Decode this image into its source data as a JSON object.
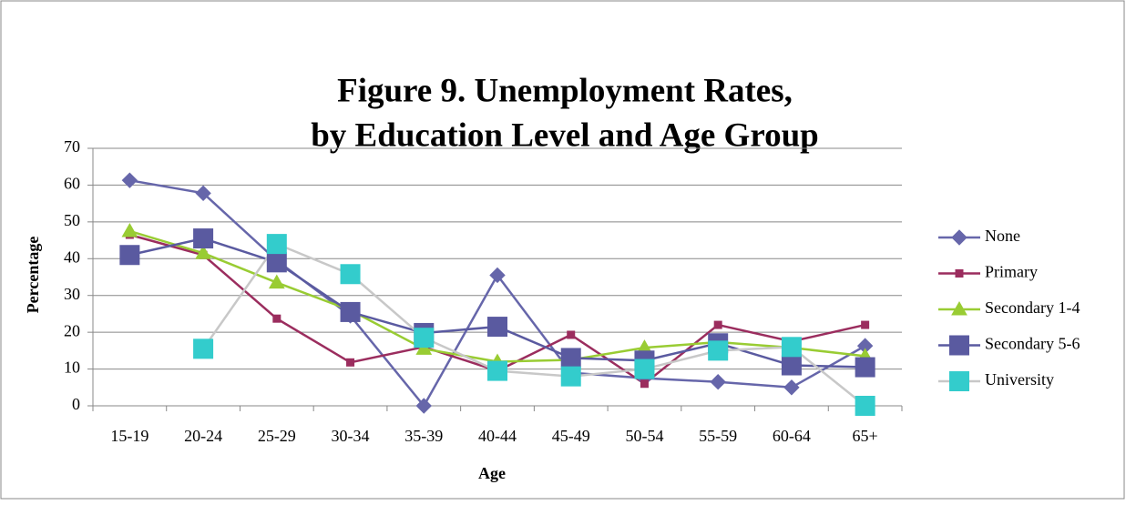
{
  "chart_data": {
    "type": "line",
    "title": [
      "Figure 9. Unemployment Rates,",
      "by Education Level and Age Group"
    ],
    "x_label": "Age",
    "y_label": "Percentage",
    "categories": [
      "15-19",
      "20-24",
      "25-29",
      "30-34",
      "35-39",
      "40-44",
      "45-49",
      "50-54",
      "55-59",
      "60-64",
      "65+"
    ],
    "ylim": [
      0,
      70
    ],
    "yticks": [
      0,
      10,
      20,
      30,
      40,
      50,
      60,
      70
    ],
    "grid": true,
    "legend": "right",
    "series": [
      {
        "name": "None",
        "color": "#6666aa",
        "marker": "diamond",
        "marker_color": "#6666aa",
        "values": [
          61.3,
          57.8,
          39.5,
          24.5,
          0,
          35.5,
          9,
          7.5,
          6.5,
          5,
          16.3
        ]
      },
      {
        "name": "Primary",
        "color": "#9b2d5e",
        "marker": "small-square",
        "marker_color": "#9b2d5e",
        "values": [
          46.5,
          41,
          23.7,
          11.8,
          16,
          9.5,
          19.3,
          6,
          22,
          17.5,
          22
        ]
      },
      {
        "name": "Secondary 1-4",
        "color": "#99cc33",
        "marker": "triangle",
        "marker_color": "#99cc33",
        "values": [
          47.5,
          41.5,
          33.5,
          26,
          15.5,
          12,
          12.5,
          15.8,
          17.3,
          15.8,
          13.5
        ]
      },
      {
        "name": "Secondary 5-6",
        "color": "#5a5aa0",
        "marker": "square",
        "marker_color": "#5a5aa0",
        "values": [
          41,
          45.5,
          39,
          25.5,
          19.8,
          21.5,
          13,
          12.3,
          17,
          11,
          10.5
        ]
      },
      {
        "name": "University",
        "color": "#c8c8c8",
        "marker": "square",
        "marker_color": "#33cccc",
        "values": [
          null,
          15.5,
          44,
          35.8,
          18.5,
          9.5,
          8,
          10,
          15,
          16,
          0
        ]
      }
    ]
  }
}
